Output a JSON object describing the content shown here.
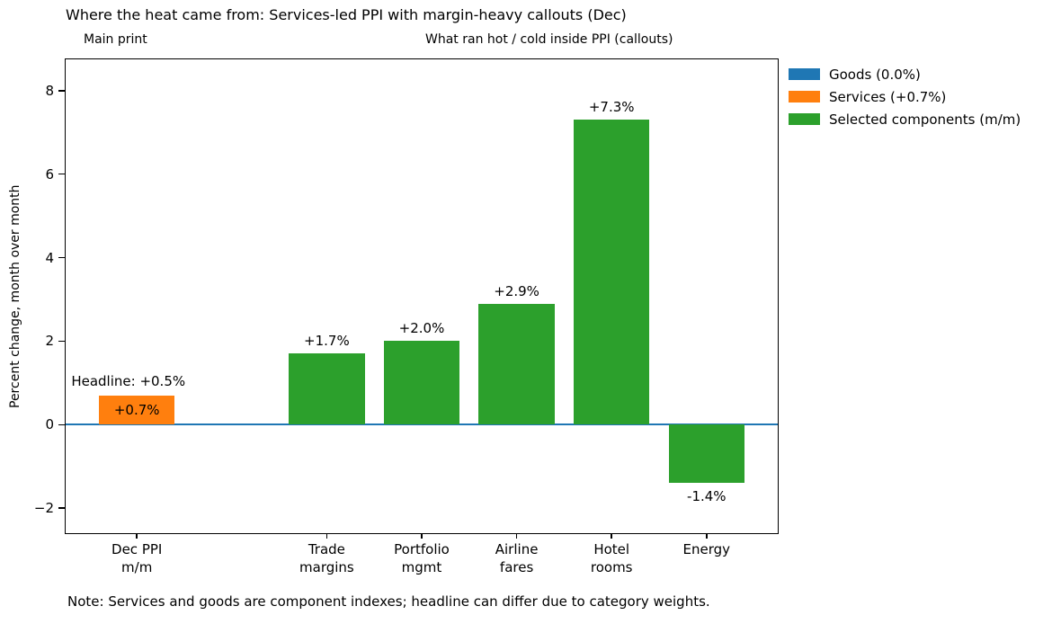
{
  "chart_data": {
    "type": "bar",
    "title": "Where the heat came from: Services-led PPI with margin-heavy callouts (Dec)",
    "panel_labels": {
      "left": "Main print",
      "right": "What ran hot / cold inside PPI (callouts)"
    },
    "ylabel": "Percent change, month over month",
    "xlabel": "",
    "ylim": [
      -2.6,
      8.75
    ],
    "xlim": [
      -0.75,
      6.75
    ],
    "yticks": [
      -2,
      0,
      2,
      4,
      6,
      8
    ],
    "grid": false,
    "bar_width": 0.8,
    "zero_line": {
      "y": 0,
      "color": "#1f77b4"
    },
    "bars": [
      {
        "id": "dec-ppi",
        "category": "Dec PPI m/m",
        "tick_lines": [
          "Dec PPI",
          "m/m"
        ],
        "x": 0,
        "value": 0.7,
        "color": "#ff7f0e",
        "series": "Services",
        "value_label": "+0.7%",
        "value_label_placement": "inside-top"
      },
      {
        "id": "trade-margins",
        "category": "Trade margins",
        "tick_lines": [
          "Trade",
          "margins"
        ],
        "x": 2,
        "value": 1.7,
        "color": "#2ca02c",
        "series": "Selected components",
        "value_label": "+1.7%",
        "value_label_placement": "above"
      },
      {
        "id": "portfolio-mgmt",
        "category": "Portfolio mgmt",
        "tick_lines": [
          "Portfolio",
          "mgmt"
        ],
        "x": 3,
        "value": 2.0,
        "color": "#2ca02c",
        "series": "Selected components",
        "value_label": "+2.0%",
        "value_label_placement": "above"
      },
      {
        "id": "airline-fares",
        "category": "Airline fares",
        "tick_lines": [
          "Airline",
          "fares"
        ],
        "x": 4,
        "value": 2.9,
        "color": "#2ca02c",
        "series": "Selected components",
        "value_label": "+2.9%",
        "value_label_placement": "above"
      },
      {
        "id": "hotel-rooms",
        "category": "Hotel rooms",
        "tick_lines": [
          "Hotel",
          "rooms"
        ],
        "x": 5,
        "value": 7.3,
        "color": "#2ca02c",
        "series": "Selected components",
        "value_label": "+7.3%",
        "value_label_placement": "above"
      },
      {
        "id": "energy",
        "category": "Energy",
        "tick_lines": [
          "Energy"
        ],
        "x": 6,
        "value": -1.4,
        "color": "#2ca02c",
        "series": "Selected components",
        "value_label": "-1.4%",
        "value_label_placement": "below"
      }
    ],
    "annotation": {
      "text": "Headline: +0.5%",
      "x_frac": 0.008,
      "y_value": 0.84
    },
    "legend_position": "upper-right-outside",
    "legend": [
      {
        "label": "Goods (0.0%)",
        "color": "#1f77b4"
      },
      {
        "label": "Services (+0.7%)",
        "color": "#ff7f0e"
      },
      {
        "label": "Selected components (m/m)",
        "color": "#2ca02c"
      }
    ],
    "note": "Note: Services and goods are component indexes; headline can differ due to category weights."
  }
}
